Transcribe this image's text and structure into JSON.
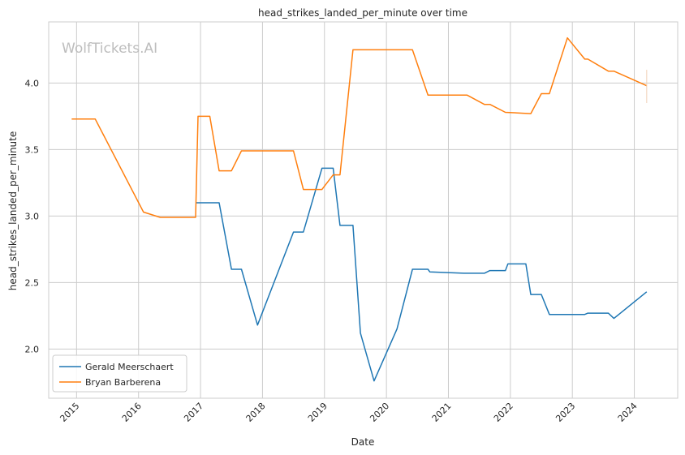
{
  "chart_data": {
    "type": "line",
    "title": "head_strikes_landed_per_minute over time",
    "xlabel": "Date",
    "ylabel": "head_strikes_landed_per_minute",
    "xlim": [
      2014.55,
      2024.7
    ],
    "ylim": [
      1.63,
      4.46
    ],
    "x_ticks": [
      "2015",
      "2016",
      "2017",
      "2018",
      "2019",
      "2020",
      "2021",
      "2022",
      "2023",
      "2024"
    ],
    "y_ticks": [
      "2.0",
      "2.5",
      "3.0",
      "3.5",
      "4.0"
    ],
    "grid": true,
    "legend_position": "lower-left",
    "watermark": "WolfTickets.AI",
    "series": [
      {
        "name": "Gerald Meerschaert",
        "color": "#1f77b4",
        "x": [
          2016.92,
          2017.3,
          2017.5,
          2017.66,
          2017.92,
          2018.5,
          2018.66,
          2018.96,
          2019.14,
          2019.25,
          2019.46,
          2019.58,
          2019.8,
          2020.17,
          2020.42,
          2020.67,
          2020.7,
          2021.25,
          2021.58,
          2021.67,
          2021.92,
          2021.96,
          2022.25,
          2022.33,
          2022.5,
          2022.63,
          2023.2,
          2023.25,
          2023.58,
          2023.67,
          2024.2
        ],
        "y": [
          3.1,
          3.1,
          2.6,
          2.6,
          2.18,
          2.88,
          2.88,
          3.36,
          3.36,
          2.93,
          2.93,
          2.12,
          1.76,
          2.15,
          2.6,
          2.6,
          2.58,
          2.57,
          2.57,
          2.59,
          2.59,
          2.64,
          2.64,
          2.41,
          2.41,
          2.26,
          2.26,
          2.27,
          2.27,
          2.23,
          2.43
        ]
      },
      {
        "name": "Bryan Barberena",
        "color": "#ff7f0e",
        "x": [
          2014.92,
          2015.3,
          2016.08,
          2016.35,
          2016.92,
          2016.96,
          2017.15,
          2017.3,
          2017.5,
          2017.66,
          2018.5,
          2018.66,
          2018.96,
          2019.14,
          2019.25,
          2019.46,
          2020.42,
          2020.67,
          2021.3,
          2021.58,
          2021.67,
          2021.92,
          2022.33,
          2022.5,
          2022.63,
          2022.92,
          2023.2,
          2023.25,
          2023.58,
          2023.67,
          2024.2
        ],
        "y": [
          3.73,
          3.73,
          3.03,
          2.99,
          2.99,
          3.75,
          3.75,
          3.34,
          3.34,
          3.49,
          3.49,
          3.2,
          3.2,
          3.31,
          3.31,
          4.25,
          4.25,
          3.91,
          3.91,
          3.84,
          3.84,
          3.78,
          3.77,
          3.92,
          3.92,
          4.34,
          4.18,
          4.18,
          4.09,
          4.09,
          3.98
        ]
      }
    ]
  }
}
